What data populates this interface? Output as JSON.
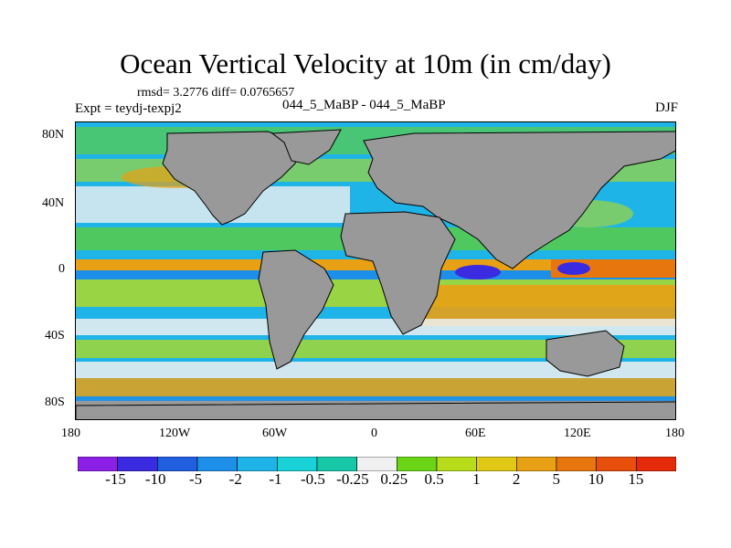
{
  "title": "Ocean Vertical Velocity at 10m (in cm/day)",
  "stats": "rmsd= 3.2776 diff= 0.0765657",
  "experiment": "Expt = teydj-texpj2",
  "runs": "044_5_MaBP - 044_5_MaBP",
  "season": "DJF",
  "lat_labels": [
    "80N",
    "40N",
    "0",
    "40S",
    "80S"
  ],
  "lon_labels": [
    "180",
    "120W",
    "60W",
    "0",
    "60E",
    "120E",
    "180"
  ],
  "colorbar": {
    "labels": [
      "-15",
      "-10",
      "-5",
      "-2",
      "-1",
      "-0.5",
      "-0.25",
      "0.25",
      "0.5",
      "1",
      "2",
      "5",
      "10",
      "15"
    ],
    "colors": [
      "#8c1fe6",
      "#3a2be0",
      "#1f5fe0",
      "#1e8fe8",
      "#1fb4e8",
      "#19d2d8",
      "#17c8a8",
      "#f0f0f0",
      "#6ad416",
      "#b6dc1a",
      "#e0c814",
      "#e8a014",
      "#e8760e",
      "#e84e0c",
      "#e42a08"
    ]
  },
  "colors": {
    "land": "#999999",
    "land_outline": "#000000"
  }
}
